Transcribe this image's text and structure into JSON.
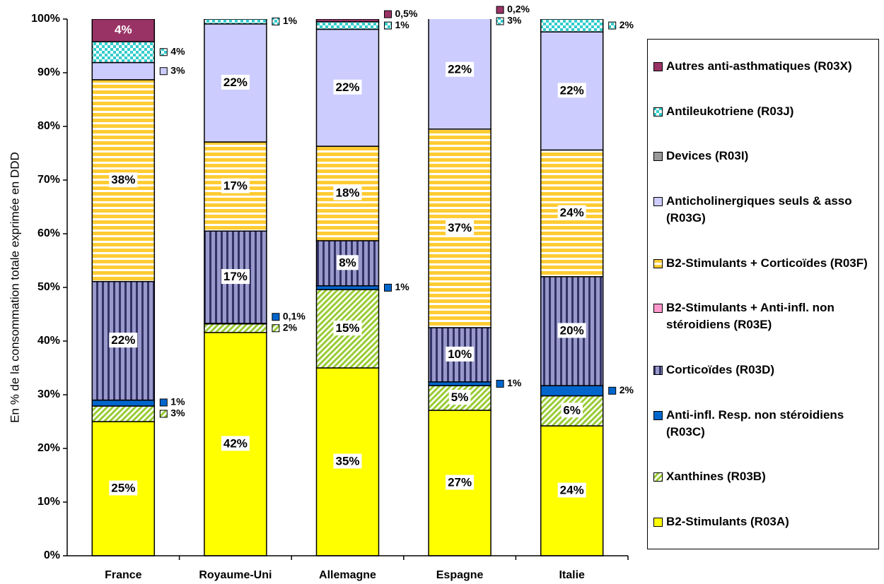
{
  "chart_data": {
    "type": "stacked_bar",
    "y_label": "En % de la consommation totale exprimée en DDD",
    "categories": [
      "France",
      "Royaume-Uni",
      "Allemagne",
      "Espagne",
      "Italie"
    ],
    "ylim": [
      0,
      100
    ],
    "yticks": [
      {
        "value": 0,
        "label": "0%"
      },
      {
        "value": 10,
        "label": "10%"
      },
      {
        "value": 20,
        "label": "20%"
      },
      {
        "value": 30,
        "label": "30%"
      },
      {
        "value": 40,
        "label": "40%"
      },
      {
        "value": 50,
        "label": "50%"
      },
      {
        "value": 60,
        "label": "60%"
      },
      {
        "value": 70,
        "label": "70%"
      },
      {
        "value": 80,
        "label": "80%"
      },
      {
        "value": 90,
        "label": "90%"
      },
      {
        "value": 100,
        "label": "100%"
      }
    ],
    "grid": false,
    "legend": "right",
    "series": [
      {
        "name": "B2-Stimulants (R03A)",
        "color": "#ffff00",
        "pattern": "solid",
        "values": [
          25,
          41.6,
          35,
          27.1,
          24.2
        ],
        "value_labels": [
          "25%",
          "42%",
          "35%",
          "27%",
          "24%"
        ]
      },
      {
        "name": "Xanthines (R03B)",
        "color": "#99cc33",
        "pattern": "diagonal",
        "values": [
          2.9,
          1.6,
          14.6,
          4.6,
          5.6
        ],
        "value_labels": [
          "3%",
          "2%",
          "15%",
          "5%",
          "6%"
        ]
      },
      {
        "name": "Anti-infl. Resp. non stéroidiens (R03C)",
        "color": "#0066cc",
        "pattern": "solid",
        "values": [
          1.1,
          0.1,
          0.7,
          0.7,
          1.9
        ],
        "value_labels": [
          "1%",
          "0,1%",
          "1%",
          "1%",
          "2%"
        ]
      },
      {
        "name": "Corticoïdes (R03D)",
        "color": "#9999cc",
        "pattern": "vertical",
        "values": [
          22.1,
          17.2,
          8.4,
          10.1,
          20.3
        ],
        "value_labels": [
          "22%",
          "17%",
          "8%",
          "10%",
          "20%"
        ]
      },
      {
        "name": "B2-Stimulants + Anti-infl. non stéroidiens (R03E)",
        "color": "#ff99cc",
        "pattern": "solid",
        "values": [
          0,
          0,
          0,
          0,
          0
        ],
        "value_labels": [
          null,
          null,
          null,
          null,
          null
        ]
      },
      {
        "name": "B2-Stimulants + Corticoïdes (R03F)",
        "color": "#ffcc33",
        "pattern": "horizontal",
        "values": [
          37.6,
          16.6,
          17.6,
          37,
          23.6
        ],
        "value_labels": [
          "38%",
          "17%",
          "18%",
          "37%",
          "24%"
        ]
      },
      {
        "name": "Anticholinergiques seuls & asso (R03G)",
        "color": "#ccccff",
        "pattern": "solid",
        "values": [
          3.2,
          22,
          21.8,
          22,
          22
        ],
        "value_labels": [
          "3%",
          "22%",
          "22%",
          "22%",
          "22%"
        ]
      },
      {
        "name": "Devices (R03I)",
        "color": "#999999",
        "pattern": "solid",
        "values": [
          0,
          0,
          0,
          0,
          0
        ],
        "value_labels": [
          null,
          null,
          null,
          null,
          null
        ]
      },
      {
        "name": "Antileukotriene (R03J)",
        "color": "#33cccc",
        "pattern": "checker",
        "values": [
          3.9,
          0.9,
          1.4,
          2.7,
          2.4
        ],
        "value_labels": [
          "4%",
          "1%",
          "1%",
          "3%",
          "2%"
        ]
      },
      {
        "name": "Autres anti-asthmatiques (R03X)",
        "color": "#993366",
        "pattern": "solid",
        "values": [
          4.2,
          0,
          0.5,
          0.2,
          0
        ],
        "value_labels": [
          "4%",
          null,
          "0,5%",
          "0,2%",
          null
        ]
      }
    ]
  }
}
